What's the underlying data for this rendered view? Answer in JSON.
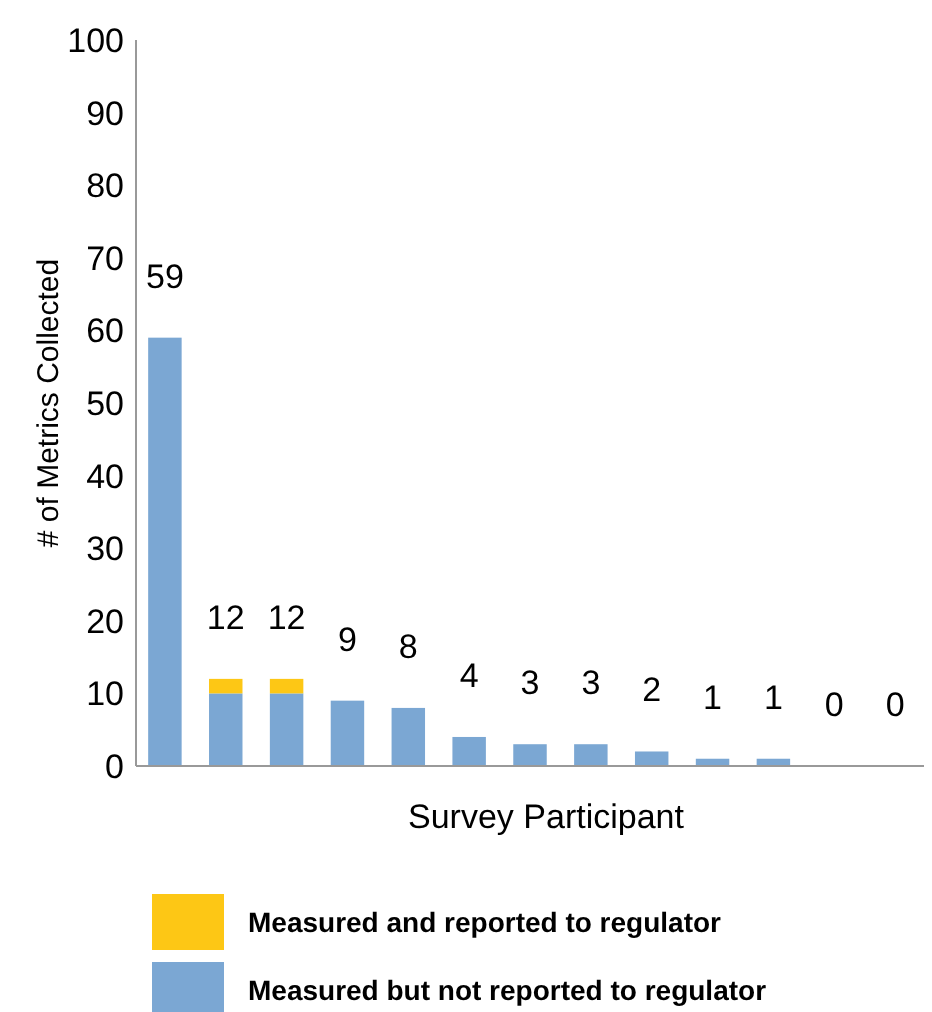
{
  "chart_data": {
    "type": "bar",
    "stacked": true,
    "ylabel": "# of Metrics Collected",
    "xlabel": "Survey Participant",
    "categories": [
      null,
      null,
      null,
      null,
      null,
      null,
      null,
      null,
      null,
      null,
      null,
      null,
      null
    ],
    "series": [
      {
        "name": "Measured but not reported to regulator",
        "color": "#7ba7d3",
        "values": [
          59,
          10,
          10,
          9,
          8,
          4,
          3,
          3,
          2,
          1,
          1,
          0,
          0
        ]
      },
      {
        "name": "Measured and reported to regulator",
        "color": "#fdc715",
        "values": [
          0,
          2,
          2,
          0,
          0,
          0,
          0,
          0,
          0,
          0,
          0,
          0,
          0
        ]
      }
    ],
    "totals": [
      "59",
      "12",
      "12",
      "9",
      "8",
      "4",
      "3",
      "3",
      "2",
      "1",
      "1",
      "0",
      "0"
    ],
    "ylim": [
      0,
      100
    ],
    "yticks": [
      0,
      10,
      20,
      30,
      40,
      50,
      60,
      70,
      80,
      90,
      100
    ],
    "grid": false,
    "legend": "bottom"
  }
}
